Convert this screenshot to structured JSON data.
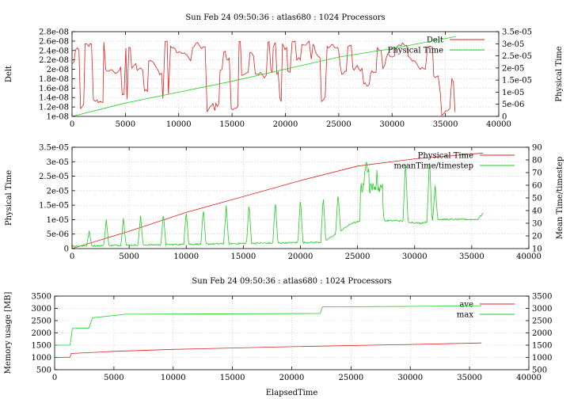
{
  "chart_data": [
    {
      "type": "line",
      "title": "Sun Feb 24 09:50:36 : atlas680 : 1024 Processors",
      "xlabel": "",
      "ylabel": "Delt",
      "y2label": "Physical Time",
      "xlim": [
        0,
        40000
      ],
      "ylim": [
        1e-08,
        2.8e-08
      ],
      "y2lim": [
        0,
        3.5e-05
      ],
      "x_ticks": [
        "0",
        "5000",
        "10000",
        "15000",
        "20000",
        "25000",
        "30000",
        "35000",
        "40000"
      ],
      "y_ticks": [
        "1e-08",
        "1.2e-08",
        "1.4e-08",
        "1.6e-08",
        "1.8e-08",
        "2e-08",
        "2.2e-08",
        "2.4e-08",
        "2.6e-08",
        "2.8e-08"
      ],
      "y2_ticks": [
        "0",
        "5e-06",
        "1e-05",
        "1.5e-05",
        "2e-05",
        "2.5e-05",
        "3e-05",
        "3.5e-05"
      ],
      "grid": true,
      "legend_position": "top-right",
      "series": [
        {
          "name": "Delt",
          "axis": "y",
          "color": "#dd2020",
          "style": "noisy",
          "x_end": 36000,
          "base": 2.15e-08,
          "low": 1e-08,
          "high": 2.6e-08
        },
        {
          "name": "Physical Time",
          "axis": "y2",
          "color": "#22cc22",
          "x": [
            0,
            5000,
            10000,
            15000,
            20000,
            25000,
            30000,
            36000
          ],
          "values": [
            0,
            5.5e-06,
            1e-05,
            1.45e-05,
            1.95e-05,
            2.45e-05,
            2.8e-05,
            3.3e-05
          ]
        }
      ]
    },
    {
      "type": "line",
      "title": "",
      "xlabel": "",
      "ylabel": "Physical Time",
      "y2label": "Mean Time/timestep",
      "xlim": [
        0,
        40000
      ],
      "ylim": [
        0,
        3.5e-05
      ],
      "y2lim": [
        10,
        90
      ],
      "x_ticks": [
        "0",
        "5000",
        "10000",
        "15000",
        "20000",
        "25000",
        "30000",
        "35000",
        "40000"
      ],
      "y_ticks": [
        "0",
        "5e-06",
        "1e-05",
        "1.5e-05",
        "2e-05",
        "2.5e-05",
        "3e-05",
        "3.5e-05"
      ],
      "y2_ticks": [
        "10",
        "20",
        "30",
        "40",
        "50",
        "60",
        "70",
        "80",
        "90"
      ],
      "grid": true,
      "legend_position": "top-right",
      "series": [
        {
          "name": "Physical Time",
          "axis": "y",
          "color": "#dd2020",
          "x": [
            0,
            5000,
            10000,
            15000,
            20000,
            25000,
            30000,
            36000
          ],
          "values": [
            0,
            6e-06,
            1.25e-05,
            1.8e-05,
            2.35e-05,
            2.85e-05,
            3.1e-05,
            3.3e-05
          ]
        },
        {
          "name": "meanTime/timestep",
          "axis": "y2",
          "color": "#22cc22",
          "style": "spiky",
          "x_end": 36000,
          "baseline": [
            [
              0,
              12
            ],
            [
              22000,
              15
            ],
            [
              24500,
              30
            ],
            [
              25500,
              32
            ],
            [
              28500,
              32
            ],
            [
              30500,
              30
            ],
            [
              32000,
              33
            ],
            [
              35500,
              33
            ],
            [
              36000,
              38
            ]
          ],
          "spikes": [
            [
              1500,
              24
            ],
            [
              3000,
              33
            ],
            [
              4500,
              34
            ],
            [
              6000,
              36
            ],
            [
              8000,
              38
            ],
            [
              10000,
              40
            ],
            [
              11500,
              42
            ],
            [
              13500,
              44
            ],
            [
              15500,
              46
            ],
            [
              17800,
              48
            ],
            [
              20000,
              50
            ],
            [
              22000,
              52
            ],
            [
              23300,
              54
            ],
            [
              25800,
              78
            ],
            [
              26700,
              72
            ],
            [
              27100,
              60
            ],
            [
              29200,
              80
            ],
            [
              31300,
              82
            ],
            [
              31800,
              60
            ]
          ]
        }
      ]
    },
    {
      "type": "line",
      "title": "Sun Feb 24 09:50:36 : atlas680 : 1024 Processors",
      "xlabel": "ElapsedTime",
      "ylabel": "Memory usage [MB]",
      "y2label": "",
      "xlim": [
        0,
        40000
      ],
      "ylim": [
        500,
        3500
      ],
      "y2lim": [
        500,
        3500
      ],
      "x_ticks": [
        "0",
        "5000",
        "10000",
        "15000",
        "20000",
        "25000",
        "30000",
        "35000",
        "40000"
      ],
      "y_ticks": [
        "500",
        "1000",
        "1500",
        "2000",
        "2500",
        "3000",
        "3500"
      ],
      "y2_ticks": [
        "500",
        "1000",
        "1500",
        "2000",
        "2500",
        "3000",
        "3500"
      ],
      "grid": true,
      "legend_position": "top-right",
      "series": [
        {
          "name": "ave",
          "axis": "y",
          "color": "#dd2020",
          "x": [
            0,
            1300,
            1400,
            5000,
            10000,
            20000,
            30000,
            36000
          ],
          "values": [
            1000,
            1010,
            1160,
            1250,
            1330,
            1440,
            1530,
            1590
          ]
        },
        {
          "name": "max",
          "axis": "y",
          "color": "#22cc22",
          "x": [
            0,
            1300,
            1500,
            2900,
            3200,
            4500,
            6000,
            22400,
            22600,
            30000,
            36000
          ],
          "values": [
            1500,
            1500,
            2180,
            2200,
            2620,
            2680,
            2760,
            2790,
            3060,
            3080,
            3110
          ]
        }
      ]
    }
  ]
}
